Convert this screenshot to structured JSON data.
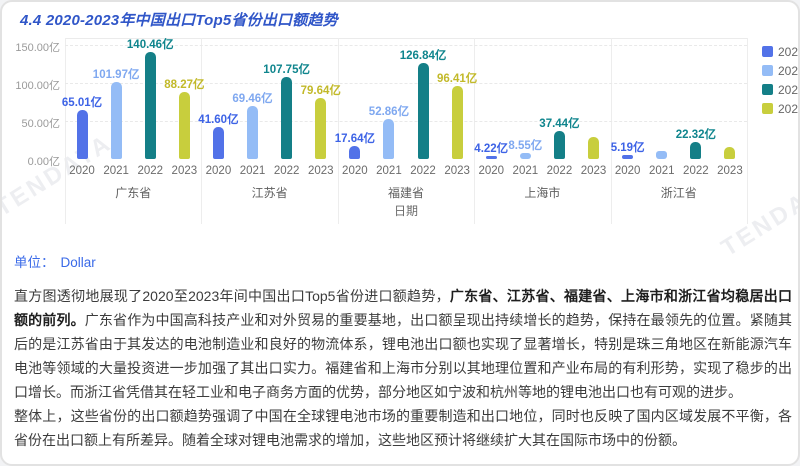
{
  "page": {
    "title": "4.4 2020-2023年中国出口Top5省份出口额趋势",
    "unit_label": "单位：",
    "unit_value": "Dollar",
    "watermark": "TENDATA"
  },
  "analysis": {
    "p1_pre": "直方图透彻地展现了2020至2023年间中国出口Top5省份进口额趋势，",
    "p1_bold": "广东省、江苏省、福建省、上海市和浙江省均稳居出口额的前列。",
    "p1_rest": "广东省作为中国高科技产业和对外贸易的重要基地，出口额呈现出持续增长的趋势，保持在最领先的位置。紧随其后的是江苏省由于其发达的电池制造业和良好的物流体系，锂电池出口额也实现了显著增长，特别是珠三角地区在新能源汽车电池等领域的大量投资进一步加强了其出口实力。福建省和上海市分别以其地理位置和产业布局的有利形势，实现了稳步的出口增长。而浙江省凭借其在轻工业和电子商务方面的优势，部分地区如宁波和杭州等地的锂电池出口也有可观的进步。",
    "p2": "整体上，这些省份的出口额趋势强调了中国在全球锂电池市场的重要制造和出口地位，同时也反映了国内区域发展不平衡，各省份在出口额上有所差异。随着全球对锂电池需求的增加，这些地区预计将继续扩大其在国际市场中的份额。"
  },
  "chart_data": {
    "type": "bar",
    "title": "",
    "xlabel": "日期",
    "ylabel": "",
    "unit": "亿",
    "ylim": [
      0,
      150
    ],
    "yticks": [
      {
        "label": "0.00亿",
        "value": 0
      },
      {
        "label": "50.00亿",
        "value": 50
      },
      {
        "label": "100.00亿",
        "value": 100
      },
      {
        "label": "150.00亿",
        "value": 150
      }
    ],
    "grid": "dashed-horizontal",
    "legend_position": "right-vertical",
    "categories": [
      "广东省",
      "江苏省",
      "福建省",
      "上海市",
      "浙江省"
    ],
    "series": [
      {
        "name": "2020",
        "color": "#5272e8",
        "label_color": "#3d63e6",
        "values": [
          65.01,
          41.6,
          17.64,
          4.22,
          5.19
        ],
        "labels": [
          "65.01亿",
          "41.60亿",
          "17.64亿",
          "4.22亿",
          "5.19亿"
        ]
      },
      {
        "name": "2021",
        "color": "#94bcf6",
        "label_color": "#7fa8f0",
        "values": [
          101.97,
          69.46,
          52.86,
          8.55,
          10.0
        ],
        "labels": [
          "101.97亿",
          "69.46亿",
          "52.86亿",
          "8.55亿",
          ""
        ]
      },
      {
        "name": "2022",
        "color": "#147f87",
        "label_color": "#0f858d",
        "values": [
          140.46,
          107.75,
          126.84,
          37.44,
          22.32
        ],
        "labels": [
          "140.46亿",
          "107.75亿",
          "126.84亿",
          "37.44亿",
          "22.32亿"
        ]
      },
      {
        "name": "2023",
        "color": "#c8ce3d",
        "label_color": "#c2b929",
        "values": [
          88.27,
          79.64,
          96.41,
          29.0,
          16.0
        ],
        "labels": [
          "88.27亿",
          "79.64亿",
          "96.41亿",
          "",
          ""
        ]
      }
    ]
  }
}
